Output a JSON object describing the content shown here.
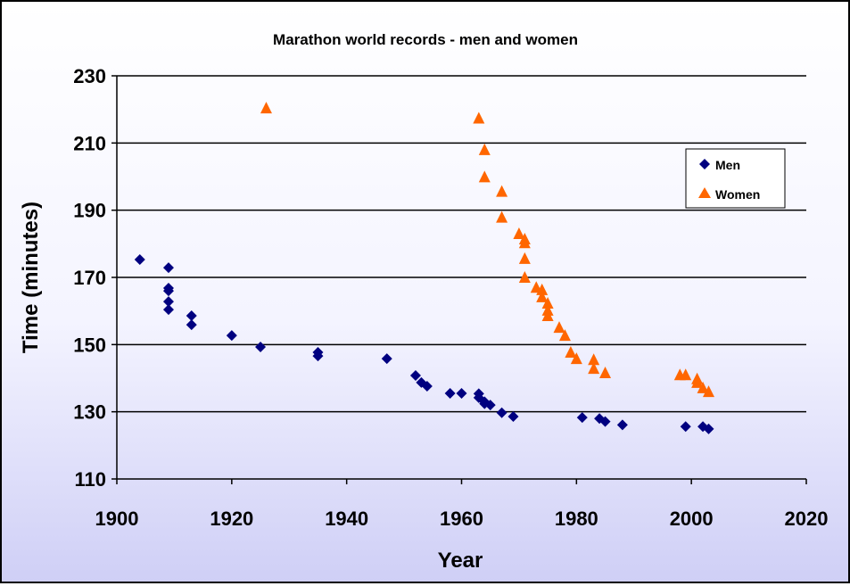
{
  "chart_data": {
    "type": "scatter",
    "title": "Marathon world records - men and women",
    "xlabel": "Year",
    "ylabel": "Time (minutes)",
    "xlim": [
      1900,
      2020
    ],
    "ylim": [
      110,
      230
    ],
    "xticks": [
      1900,
      1920,
      1940,
      1960,
      1980,
      2000,
      2020
    ],
    "yticks": [
      110,
      130,
      150,
      170,
      190,
      210,
      230
    ],
    "grid": "horizontal",
    "legend_position": "top-right",
    "series": [
      {
        "name": "Men",
        "color": "#000080",
        "marker": "diamond",
        "points": [
          [
            1904,
            175.3
          ],
          [
            1909,
            172.9
          ],
          [
            1909,
            166.8
          ],
          [
            1909,
            166
          ],
          [
            1909,
            162.8
          ],
          [
            1909,
            160.4
          ],
          [
            1913,
            158.6
          ],
          [
            1913,
            155.9
          ],
          [
            1920,
            152.7
          ],
          [
            1925,
            149.3
          ],
          [
            1935,
            147.7
          ],
          [
            1935,
            146.6
          ],
          [
            1947,
            145.8
          ],
          [
            1952,
            140.8
          ],
          [
            1953,
            138.7
          ],
          [
            1954,
            137.6
          ],
          [
            1958,
            135.5
          ],
          [
            1960,
            135.5
          ],
          [
            1963,
            135.4
          ],
          [
            1963,
            134.2
          ],
          [
            1964,
            133
          ],
          [
            1964,
            132.4
          ],
          [
            1965,
            132
          ],
          [
            1967,
            129.7
          ],
          [
            1969,
            128.6
          ],
          [
            1981,
            128.3
          ],
          [
            1984,
            128
          ],
          [
            1985,
            127.1
          ],
          [
            1988,
            126.1
          ],
          [
            1999,
            125.6
          ],
          [
            2002,
            125.6
          ],
          [
            2003,
            124.9
          ]
        ]
      },
      {
        "name": "Women",
        "color": "#FF6600",
        "marker": "triangle",
        "points": [
          [
            1926,
            220.4
          ],
          [
            1963,
            217.4
          ],
          [
            1964,
            208
          ],
          [
            1964,
            199.9
          ],
          [
            1967,
            195.6
          ],
          [
            1967,
            187.9
          ],
          [
            1970,
            183
          ],
          [
            1971,
            181.4
          ],
          [
            1971,
            180.3
          ],
          [
            1971,
            175.6
          ],
          [
            1971,
            170
          ],
          [
            1973,
            167
          ],
          [
            1974,
            166.3
          ],
          [
            1974,
            164.2
          ],
          [
            1975,
            162.3
          ],
          [
            1975,
            160.2
          ],
          [
            1975,
            158.6
          ],
          [
            1977,
            155.1
          ],
          [
            1978,
            152.7
          ],
          [
            1979,
            147.7
          ],
          [
            1980,
            145.8
          ],
          [
            1983,
            145.5
          ],
          [
            1983,
            142.9
          ],
          [
            1985,
            141.6
          ],
          [
            1998,
            141
          ],
          [
            1999,
            141
          ],
          [
            2001,
            139.8
          ],
          [
            2001,
            138.7
          ],
          [
            2002,
            137.1
          ],
          [
            2003,
            136
          ]
        ]
      }
    ]
  }
}
